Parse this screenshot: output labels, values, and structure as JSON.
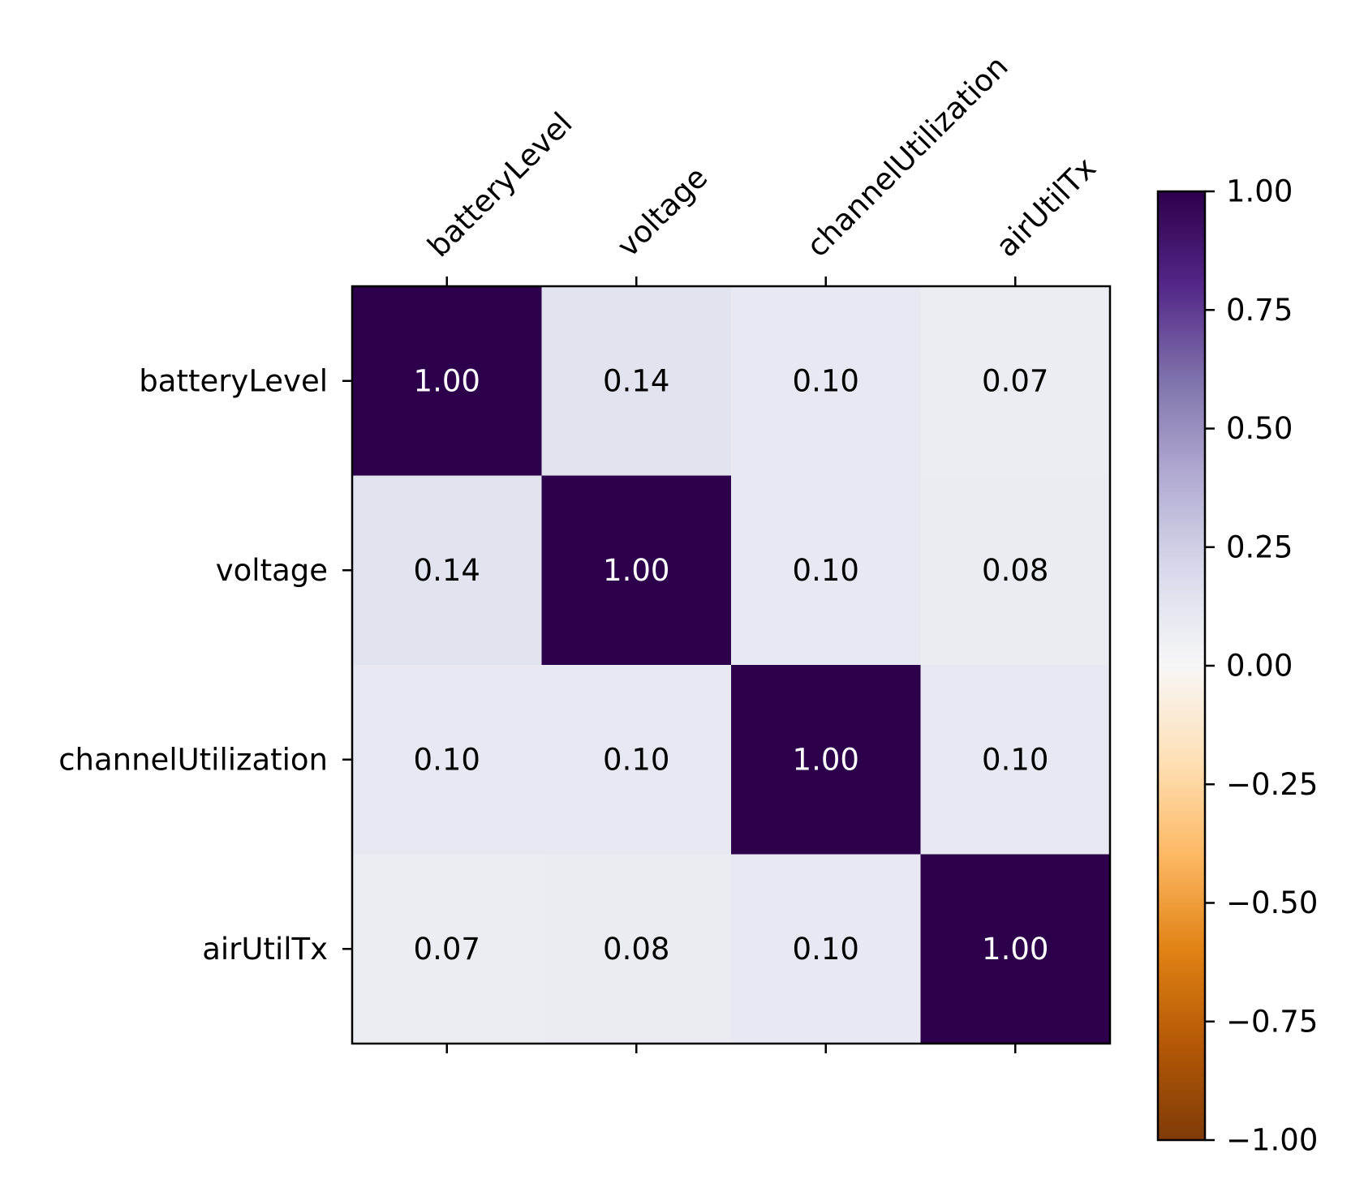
{
  "chart_data": {
    "type": "heatmap",
    "title": "",
    "x_categories": [
      "batteryLevel",
      "voltage",
      "channelUtilization",
      "airUtilTx"
    ],
    "y_categories": [
      "batteryLevel",
      "voltage",
      "channelUtilization",
      "airUtilTx"
    ],
    "values": [
      [
        1.0,
        0.14,
        0.1,
        0.07
      ],
      [
        0.14,
        1.0,
        0.1,
        0.08
      ],
      [
        0.1,
        0.1,
        1.0,
        0.1
      ],
      [
        0.07,
        0.08,
        0.1,
        1.0
      ]
    ],
    "value_format": "2 decimals",
    "colormap": "PuOr",
    "colorbar": {
      "range": [
        -1.0,
        1.0
      ],
      "ticks": [
        1.0,
        0.75,
        0.5,
        0.25,
        0.0,
        -0.25,
        -0.5,
        -0.75,
        -1.0
      ],
      "tick_labels": [
        "1.00",
        "0.75",
        "0.50",
        "0.25",
        "0.00",
        "−0.25",
        "−0.50",
        "−0.75",
        "−1.00"
      ]
    },
    "x_tick_position": "top",
    "annotation_colors": {
      "dark_cell": "#ffffff",
      "light_cell": "#000000"
    }
  }
}
